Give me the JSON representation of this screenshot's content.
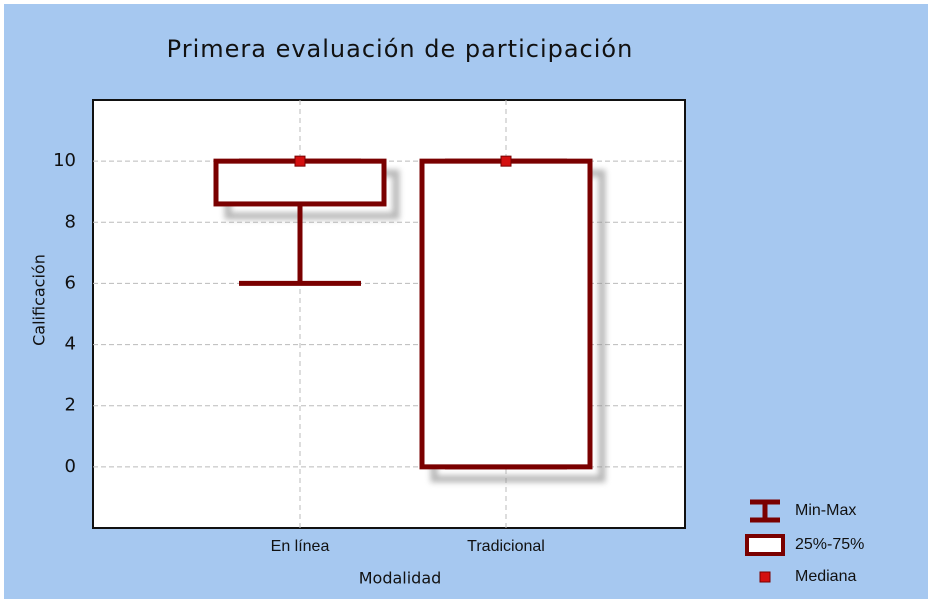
{
  "chart_data": {
    "type": "box",
    "title": "Primera evaluación de participación",
    "x_label": "Modalidad",
    "y_label": "Calificación",
    "categories": [
      "En línea",
      "Tradicional"
    ],
    "min": [
      6,
      0
    ],
    "q1": [
      8.6,
      0
    ],
    "median": [
      10,
      10
    ],
    "q3": [
      10,
      10
    ],
    "max": [
      10,
      10
    ],
    "ylim": [
      -2,
      12
    ],
    "yticks": [
      0,
      2,
      4,
      6,
      8,
      10
    ],
    "grid": true,
    "box_color": "#7a0000",
    "median_color": "#d41010",
    "legend_position": "lower right",
    "legend": [
      "Min-Max",
      "25%-75%",
      "Mediana"
    ]
  }
}
